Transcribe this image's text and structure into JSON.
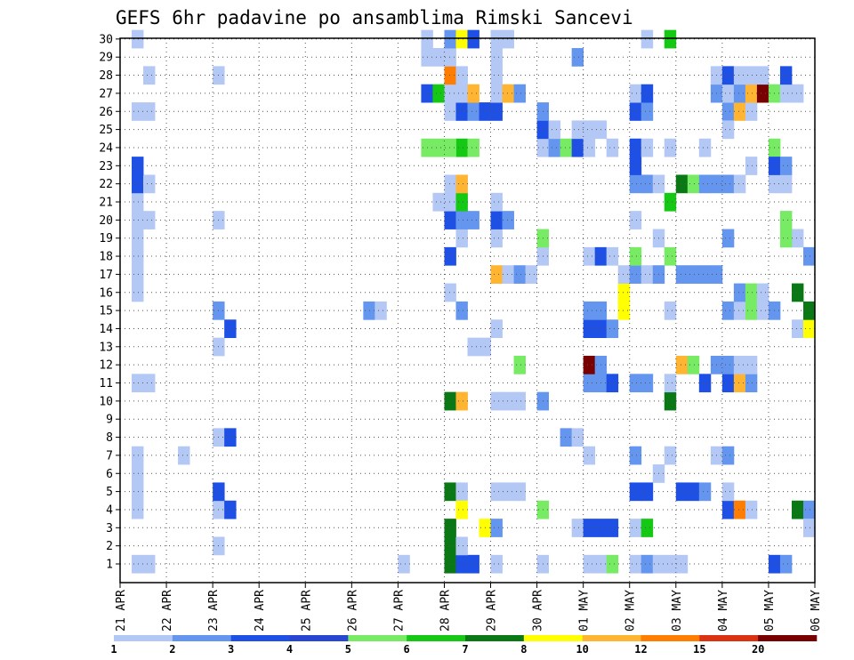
{
  "chart_data": {
    "type": "heatmap",
    "title": "GEFS 6hr padavine po ansamblima Rimski Sancevi",
    "xlabel": "",
    "ylabel": "",
    "x_tick_labels": [
      "21 APR",
      "22 APR",
      "23 APR",
      "24 APR",
      "25 APR",
      "26 APR",
      "27 APR",
      "28 APR",
      "29 APR",
      "30 APR",
      "01 MAY",
      "02 MAY",
      "03 MAY",
      "04 MAY",
      "05 MAY",
      "06 MAY"
    ],
    "y_tick_labels": [
      "1",
      "2",
      "3",
      "4",
      "5",
      "6",
      "7",
      "8",
      "9",
      "10",
      "11",
      "12",
      "13",
      "14",
      "15",
      "16",
      "17",
      "18",
      "19",
      "20",
      "21",
      "22",
      "23",
      "24",
      "25",
      "26",
      "27",
      "28",
      "29",
      "30"
    ],
    "time_steps_per_day": 4,
    "grid": true,
    "legend_placement": "bottom",
    "legend": {
      "labels": [
        "1",
        "2",
        "3",
        "4",
        "5",
        "6",
        "7",
        "8",
        "10",
        "12",
        "15",
        "20"
      ],
      "colors": [
        "#b4c8f5",
        "#6496f0",
        "#1e50e6",
        "#2846d2",
        "#78eb64",
        "#14c814",
        "#0a7814",
        "#ffff00",
        "#ffb432",
        "#ff7d00",
        "#dc3214",
        "#780000"
      ]
    },
    "cell_format": "[day_index, step_in_day(0-3), member, color_class(0-11)]",
    "cells": [
      [
        0,
        1,
        1,
        0
      ],
      [
        0,
        2,
        1,
        0
      ],
      [
        0,
        1,
        4,
        0
      ],
      [
        0,
        1,
        5,
        0
      ],
      [
        0,
        1,
        6,
        0
      ],
      [
        0,
        1,
        7,
        0
      ],
      [
        0,
        1,
        11,
        0
      ],
      [
        0,
        2,
        11,
        0
      ],
      [
        0,
        1,
        16,
        0
      ],
      [
        0,
        1,
        17,
        0
      ],
      [
        0,
        1,
        18,
        0
      ],
      [
        0,
        1,
        19,
        0
      ],
      [
        0,
        1,
        20,
        0
      ],
      [
        0,
        2,
        20,
        0
      ],
      [
        0,
        1,
        21,
        0
      ],
      [
        0,
        1,
        22,
        2
      ],
      [
        0,
        2,
        22,
        0
      ],
      [
        0,
        1,
        23,
        2
      ],
      [
        0,
        1,
        26,
        0
      ],
      [
        0,
        2,
        26,
        0
      ],
      [
        0,
        2,
        28,
        0
      ],
      [
        0,
        1,
        30,
        0
      ],
      [
        1,
        1,
        7,
        0
      ],
      [
        2,
        0,
        2,
        0
      ],
      [
        2,
        0,
        4,
        0
      ],
      [
        2,
        1,
        4,
        2
      ],
      [
        2,
        0,
        5,
        2
      ],
      [
        2,
        0,
        8,
        0
      ],
      [
        2,
        1,
        8,
        2
      ],
      [
        2,
        0,
        13,
        0
      ],
      [
        2,
        1,
        14,
        2
      ],
      [
        2,
        0,
        15,
        1
      ],
      [
        2,
        0,
        20,
        0
      ],
      [
        2,
        0,
        28,
        0
      ],
      [
        5,
        1,
        15,
        1
      ],
      [
        5,
        2,
        15,
        0
      ],
      [
        6,
        0,
        1,
        0
      ],
      [
        6,
        2,
        30,
        0
      ],
      [
        6,
        2,
        29,
        0
      ],
      [
        6,
        3,
        29,
        0
      ],
      [
        6,
        2,
        27,
        2
      ],
      [
        6,
        3,
        27,
        5
      ],
      [
        6,
        2,
        24,
        4
      ],
      [
        6,
        3,
        24,
        4
      ],
      [
        6,
        3,
        21,
        0
      ],
      [
        7,
        0,
        1,
        6
      ],
      [
        7,
        1,
        1,
        2
      ],
      [
        7,
        2,
        1,
        2
      ],
      [
        7,
        0,
        2,
        6
      ],
      [
        7,
        1,
        2,
        0
      ],
      [
        7,
        3,
        3,
        7
      ],
      [
        7,
        0,
        3,
        6
      ],
      [
        7,
        0,
        5,
        6
      ],
      [
        7,
        1,
        5,
        0
      ],
      [
        7,
        0,
        10,
        6
      ],
      [
        7,
        1,
        10,
        8
      ],
      [
        7,
        1,
        4,
        7
      ],
      [
        7,
        1,
        15,
        1
      ],
      [
        7,
        2,
        13,
        0
      ],
      [
        7,
        3,
        13,
        0
      ],
      [
        7,
        0,
        16,
        0
      ],
      [
        7,
        0,
        18,
        2
      ],
      [
        7,
        1,
        19,
        0
      ],
      [
        7,
        0,
        20,
        2
      ],
      [
        7,
        1,
        20,
        1
      ],
      [
        7,
        2,
        20,
        1
      ],
      [
        7,
        0,
        21,
        0
      ],
      [
        7,
        1,
        21,
        5
      ],
      [
        7,
        0,
        22,
        0
      ],
      [
        7,
        1,
        22,
        8
      ],
      [
        7,
        1,
        24,
        5
      ],
      [
        7,
        2,
        24,
        4
      ],
      [
        7,
        0,
        24,
        4
      ],
      [
        7,
        0,
        26,
        0
      ],
      [
        7,
        1,
        26,
        2
      ],
      [
        7,
        2,
        26,
        1
      ],
      [
        7,
        3,
        26,
        2
      ],
      [
        7,
        0,
        27,
        0
      ],
      [
        7,
        1,
        27,
        0
      ],
      [
        7,
        2,
        27,
        8
      ],
      [
        7,
        0,
        28,
        9
      ],
      [
        7,
        1,
        28,
        0
      ],
      [
        7,
        0,
        29,
        0
      ],
      [
        7,
        0,
        30,
        1
      ],
      [
        7,
        1,
        30,
        7
      ],
      [
        7,
        2,
        30,
        2
      ],
      [
        8,
        0,
        1,
        0
      ],
      [
        8,
        0,
        3,
        1
      ],
      [
        8,
        0,
        5,
        0
      ],
      [
        8,
        1,
        5,
        0
      ],
      [
        8,
        2,
        5,
        0
      ],
      [
        8,
        0,
        10,
        0
      ],
      [
        8,
        1,
        10,
        0
      ],
      [
        8,
        2,
        10,
        0
      ],
      [
        8,
        0,
        14,
        0
      ],
      [
        8,
        0,
        17,
        8
      ],
      [
        8,
        1,
        17,
        0
      ],
      [
        8,
        2,
        17,
        1
      ],
      [
        8,
        3,
        17,
        0
      ],
      [
        8,
        0,
        19,
        0
      ],
      [
        8,
        0,
        20,
        2
      ],
      [
        8,
        1,
        20,
        1
      ],
      [
        8,
        0,
        21,
        0
      ],
      [
        8,
        0,
        26,
        2
      ],
      [
        8,
        0,
        27,
        0
      ],
      [
        8,
        1,
        27,
        8
      ],
      [
        8,
        2,
        27,
        1
      ],
      [
        8,
        0,
        28,
        0
      ],
      [
        8,
        0,
        29,
        0
      ],
      [
        8,
        0,
        30,
        0
      ],
      [
        8,
        1,
        30,
        0
      ],
      [
        8,
        2,
        12,
        4
      ],
      [
        9,
        0,
        1,
        0
      ],
      [
        9,
        0,
        4,
        4
      ],
      [
        9,
        0,
        10,
        1
      ],
      [
        9,
        0,
        18,
        0
      ],
      [
        9,
        0,
        19,
        4
      ],
      [
        9,
        0,
        24,
        0
      ],
      [
        9,
        1,
        24,
        1
      ],
      [
        9,
        2,
        24,
        4
      ],
      [
        9,
        3,
        24,
        2
      ],
      [
        9,
        0,
        25,
        2
      ],
      [
        9,
        1,
        25,
        0
      ],
      [
        9,
        3,
        25,
        0
      ],
      [
        9,
        3,
        29,
        1
      ],
      [
        9,
        2,
        8,
        1
      ],
      [
        9,
        3,
        8,
        0
      ],
      [
        9,
        3,
        3,
        0
      ],
      [
        9,
        0,
        26,
        1
      ],
      [
        10,
        0,
        3,
        2
      ],
      [
        10,
        1,
        3,
        2
      ],
      [
        10,
        2,
        3,
        2
      ],
      [
        10,
        0,
        7,
        0
      ],
      [
        10,
        0,
        11,
        1
      ],
      [
        10,
        1,
        11,
        1
      ],
      [
        10,
        2,
        11,
        2
      ],
      [
        10,
        0,
        12,
        11
      ],
      [
        10,
        1,
        12,
        1
      ],
      [
        10,
        0,
        14,
        2
      ],
      [
        10,
        1,
        14,
        2
      ],
      [
        10,
        2,
        14,
        1
      ],
      [
        10,
        0,
        15,
        1
      ],
      [
        10,
        1,
        15,
        1
      ],
      [
        10,
        3,
        15,
        7
      ],
      [
        10,
        0,
        18,
        0
      ],
      [
        10,
        1,
        18,
        2
      ],
      [
        10,
        2,
        18,
        0
      ],
      [
        10,
        0,
        24,
        0
      ],
      [
        10,
        2,
        24,
        0
      ],
      [
        10,
        0,
        25,
        0
      ],
      [
        10,
        1,
        25,
        0
      ],
      [
        10,
        0,
        1,
        0
      ],
      [
        10,
        1,
        1,
        0
      ],
      [
        10,
        2,
        1,
        4
      ],
      [
        10,
        3,
        16,
        7
      ],
      [
        10,
        3,
        17,
        0
      ],
      [
        11,
        0,
        1,
        0
      ],
      [
        11,
        1,
        1,
        1
      ],
      [
        11,
        2,
        1,
        0
      ],
      [
        11,
        3,
        1,
        0
      ],
      [
        11,
        0,
        3,
        0
      ],
      [
        11,
        1,
        3,
        5
      ],
      [
        11,
        0,
        5,
        2
      ],
      [
        11,
        1,
        5,
        2
      ],
      [
        11,
        2,
        6,
        0
      ],
      [
        11,
        0,
        7,
        1
      ],
      [
        11,
        3,
        7,
        0
      ],
      [
        11,
        3,
        10,
        6
      ],
      [
        11,
        0,
        11,
        1
      ],
      [
        11,
        1,
        11,
        1
      ],
      [
        11,
        3,
        11,
        0
      ],
      [
        11,
        0,
        17,
        1
      ],
      [
        11,
        1,
        17,
        0
      ],
      [
        11,
        2,
        17,
        1
      ],
      [
        11,
        0,
        18,
        4
      ],
      [
        11,
        3,
        18,
        4
      ],
      [
        11,
        2,
        19,
        0
      ],
      [
        11,
        0,
        20,
        0
      ],
      [
        11,
        3,
        21,
        5
      ],
      [
        11,
        0,
        22,
        1
      ],
      [
        11,
        1,
        22,
        1
      ],
      [
        11,
        2,
        22,
        0
      ],
      [
        11,
        0,
        23,
        2
      ],
      [
        11,
        0,
        24,
        2
      ],
      [
        11,
        1,
        24,
        0
      ],
      [
        11,
        0,
        26,
        2
      ],
      [
        11,
        1,
        26,
        1
      ],
      [
        11,
        0,
        27,
        0
      ],
      [
        11,
        1,
        27,
        2
      ],
      [
        11,
        3,
        30,
        5
      ],
      [
        11,
        1,
        30,
        0
      ],
      [
        11,
        3,
        24,
        0
      ],
      [
        11,
        3,
        15,
        0
      ],
      [
        12,
        0,
        1,
        0
      ],
      [
        12,
        0,
        5,
        2
      ],
      [
        12,
        1,
        5,
        2
      ],
      [
        12,
        2,
        5,
        1
      ],
      [
        12,
        3,
        7,
        0
      ],
      [
        12,
        0,
        12,
        8
      ],
      [
        12,
        1,
        12,
        4
      ],
      [
        12,
        2,
        11,
        2
      ],
      [
        12,
        0,
        17,
        1
      ],
      [
        12,
        1,
        17,
        1
      ],
      [
        12,
        2,
        17,
        1
      ],
      [
        12,
        3,
        17,
        1
      ],
      [
        12,
        0,
        22,
        6
      ],
      [
        12,
        1,
        22,
        4
      ],
      [
        12,
        2,
        22,
        1
      ],
      [
        12,
        3,
        22,
        1
      ],
      [
        12,
        2,
        24,
        0
      ],
      [
        12,
        3,
        27,
        1
      ],
      [
        12,
        3,
        28,
        0
      ],
      [
        12,
        3,
        12,
        1
      ],
      [
        13,
        0,
        4,
        2
      ],
      [
        13,
        1,
        4,
        9
      ],
      [
        13,
        2,
        4,
        0
      ],
      [
        13,
        0,
        5,
        0
      ],
      [
        13,
        0,
        7,
        1
      ],
      [
        13,
        0,
        11,
        2
      ],
      [
        13,
        1,
        11,
        8
      ],
      [
        13,
        2,
        11,
        1
      ],
      [
        13,
        0,
        12,
        1
      ],
      [
        13,
        1,
        12,
        0
      ],
      [
        13,
        2,
        12,
        0
      ],
      [
        13,
        0,
        15,
        1
      ],
      [
        13,
        1,
        15,
        0
      ],
      [
        13,
        2,
        15,
        4
      ],
      [
        13,
        3,
        15,
        0
      ],
      [
        13,
        1,
        16,
        1
      ],
      [
        13,
        2,
        16,
        4
      ],
      [
        13,
        3,
        16,
        0
      ],
      [
        13,
        0,
        19,
        1
      ],
      [
        13,
        0,
        22,
        1
      ],
      [
        13,
        1,
        22,
        0
      ],
      [
        13,
        0,
        26,
        1
      ],
      [
        13,
        1,
        26,
        8
      ],
      [
        13,
        2,
        26,
        0
      ],
      [
        13,
        0,
        27,
        0
      ],
      [
        13,
        1,
        27,
        1
      ],
      [
        13,
        2,
        27,
        8
      ],
      [
        13,
        3,
        27,
        11
      ],
      [
        13,
        0,
        28,
        2
      ],
      [
        13,
        1,
        28,
        0
      ],
      [
        13,
        2,
        28,
        0
      ],
      [
        13,
        3,
        28,
        0
      ],
      [
        13,
        2,
        23,
        0
      ],
      [
        13,
        0,
        25,
        0
      ],
      [
        14,
        0,
        1,
        2
      ],
      [
        14,
        1,
        1,
        1
      ],
      [
        14,
        0,
        15,
        1
      ],
      [
        14,
        0,
        27,
        4
      ],
      [
        14,
        1,
        27,
        0
      ],
      [
        14,
        2,
        27,
        0
      ],
      [
        14,
        0,
        24,
        4
      ],
      [
        14,
        0,
        22,
        0
      ],
      [
        14,
        1,
        22,
        0
      ],
      [
        14,
        0,
        23,
        2
      ],
      [
        14,
        1,
        23,
        1
      ],
      [
        14,
        1,
        28,
        2
      ],
      [
        14,
        2,
        19,
        0
      ],
      [
        14,
        1,
        20,
        0
      ],
      [
        14,
        2,
        14,
        0
      ],
      [
        14,
        2,
        16,
        6
      ],
      [
        14,
        2,
        4,
        6
      ],
      [
        14,
        3,
        4,
        1
      ],
      [
        14,
        3,
        3,
        0
      ],
      [
        14,
        3,
        18,
        1
      ],
      [
        14,
        1,
        19,
        4
      ],
      [
        14,
        1,
        20,
        4
      ],
      [
        14,
        3,
        14,
        7
      ],
      [
        14,
        3,
        15,
        6
      ]
    ]
  }
}
